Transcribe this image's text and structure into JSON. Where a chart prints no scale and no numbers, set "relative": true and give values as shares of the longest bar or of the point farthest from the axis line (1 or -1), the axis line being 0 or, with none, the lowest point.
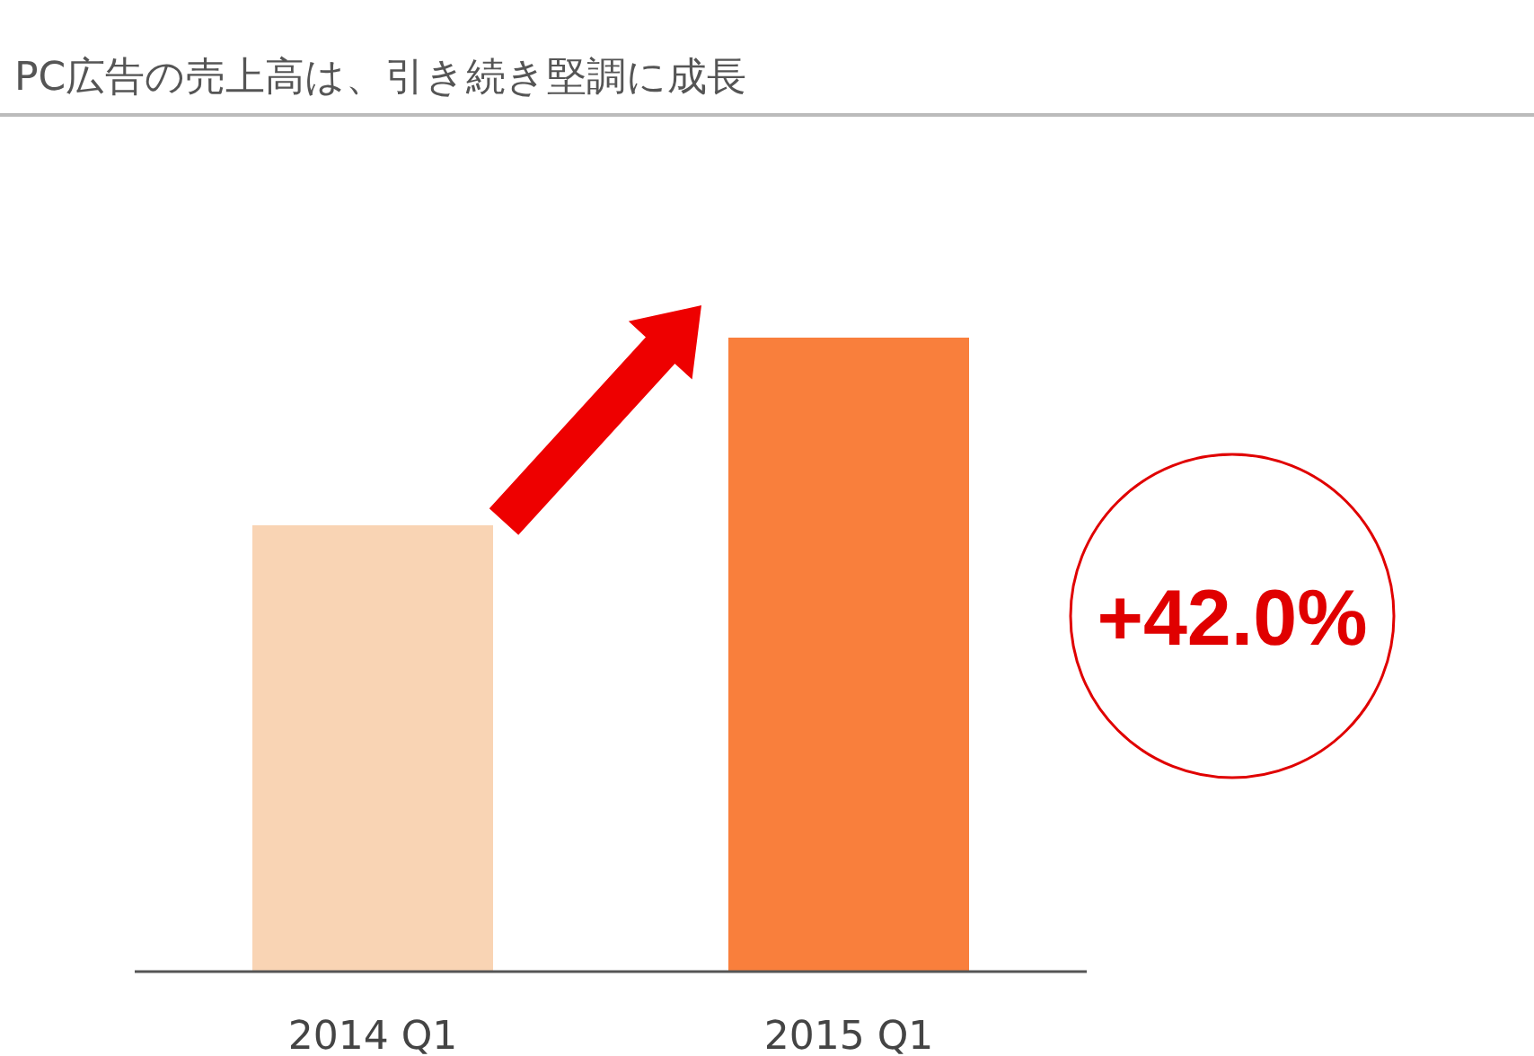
{
  "chart_data": {
    "type": "bar",
    "title": "PC広告の売上高は、引き続き堅調に成長",
    "relative": true,
    "categories": [
      "2014 Q1",
      "2015 Q1"
    ],
    "values": [
      0.704,
      1
    ],
    "colors": [
      "#f9d4b4",
      "#f97f3c"
    ],
    "annotations": [
      "+42.0%"
    ]
  }
}
